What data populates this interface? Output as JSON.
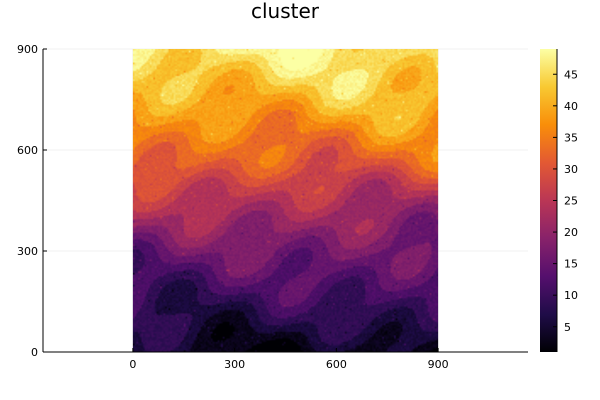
{
  "chart_data": {
    "type": "heatmap",
    "title": "cluster",
    "xlabel": "",
    "ylabel": "",
    "xlim": [
      -265,
      1165
    ],
    "ylim": [
      0,
      900
    ],
    "image_extent": {
      "x": [
        0,
        900
      ],
      "y": [
        0,
        900
      ]
    },
    "x_ticks": [
      {
        "value": 0,
        "label": "0"
      },
      {
        "value": 300,
        "label": "300"
      },
      {
        "value": 600,
        "label": "600"
      },
      {
        "value": 900,
        "label": "900"
      }
    ],
    "y_ticks": [
      {
        "value": 0,
        "label": "0"
      },
      {
        "value": 300,
        "label": "300"
      },
      {
        "value": 600,
        "label": "600"
      },
      {
        "value": 900,
        "label": "900"
      }
    ],
    "grid": true,
    "colormap": "inferno",
    "colormap_stops": [
      "#000004",
      "#1f0c48",
      "#550f6d",
      "#88226a",
      "#ba3655",
      "#e35933",
      "#f98e09",
      "#f8c932",
      "#fcffa4"
    ],
    "value_range": [
      1,
      49
    ],
    "colorbar": {
      "placement": "right",
      "ticks": [
        {
          "value": 5,
          "label": "5"
        },
        {
          "value": 10,
          "label": "10"
        },
        {
          "value": 15,
          "label": "15"
        },
        {
          "value": 20,
          "label": "20"
        },
        {
          "value": 25,
          "label": "25"
        },
        {
          "value": 30,
          "label": "30"
        },
        {
          "value": 35,
          "label": "35"
        },
        {
          "value": 40,
          "label": "40"
        },
        {
          "value": 45,
          "label": "45"
        }
      ]
    },
    "row_profile": {
      "y": [
        0,
        100,
        200,
        300,
        400,
        500,
        550,
        650,
        750,
        850,
        900
      ],
      "value": [
        3,
        8,
        12,
        16,
        21,
        27,
        31,
        36,
        41,
        45,
        47
      ]
    }
  }
}
